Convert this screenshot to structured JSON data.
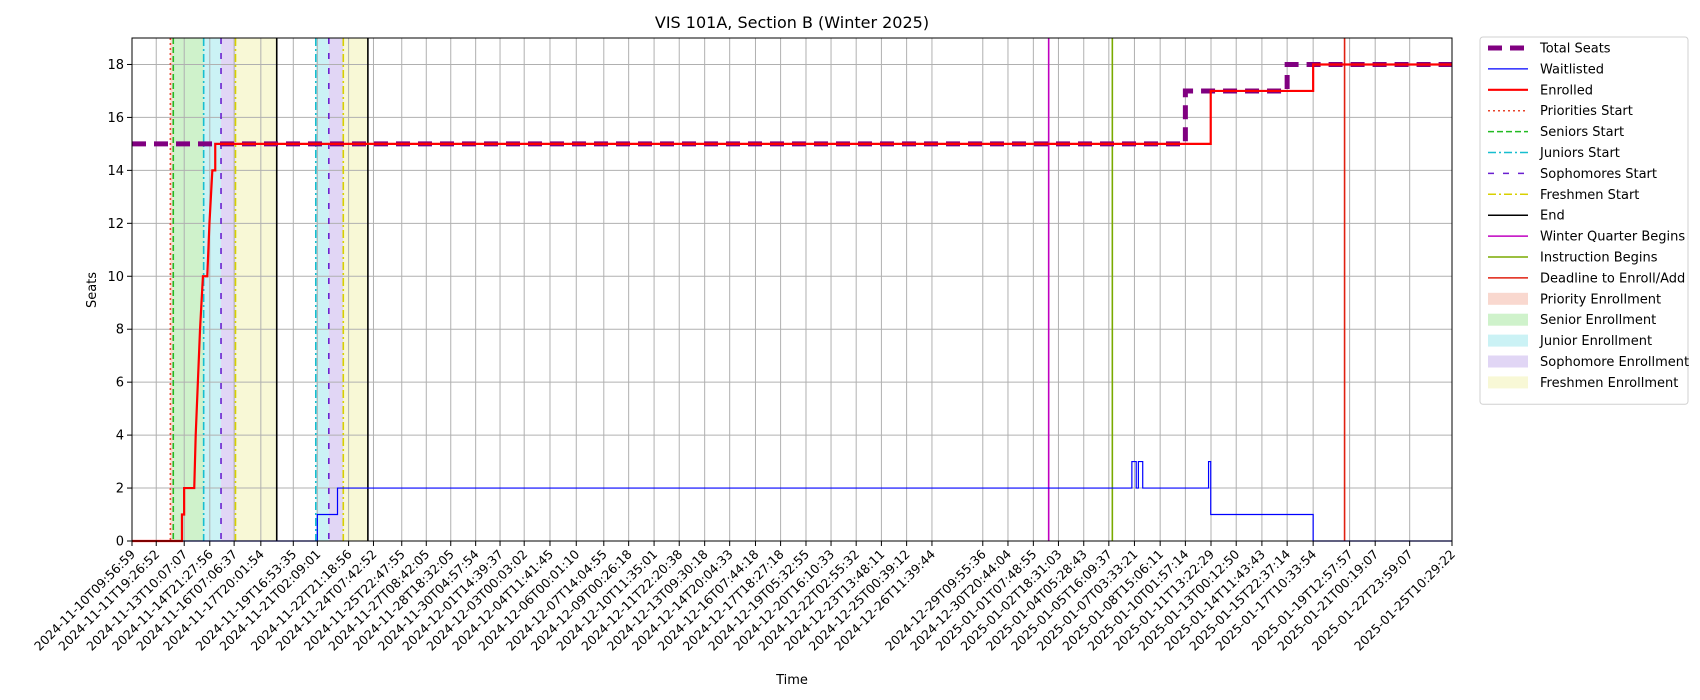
{
  "chart_data": {
    "type": "line",
    "title": "VIS 101A, Section B (Winter 2025)",
    "xlabel": "Time",
    "ylabel": "Seats",
    "ylim": [
      0,
      19
    ],
    "yticks": [
      0,
      2,
      4,
      6,
      8,
      10,
      12,
      14,
      16,
      18
    ],
    "xlim": [
      "2024-11-10T09:56:59",
      "2025-01-25T10:29:22"
    ],
    "grid": true,
    "legend_position": "outside-right",
    "xtick_labels": [
      "2024-11-10T09:56:59",
      "2024-11-11T19:26:52",
      "2024-11-13T10:07:07",
      "2024-11-14T21:27:56",
      "2024-11-16T07:06:37",
      "2024-11-17T20:01:54",
      "2024-11-19T16:53:35",
      "2024-11-21T02:09:01",
      "2024-11-22T21:18:56",
      "2024-11-24T07:42:52",
      "2024-11-25T22:47:55",
      "2024-11-27T08:42:05",
      "2024-11-28T18:32:05",
      "2024-11-30T04:57:54",
      "2024-12-01T14:39:37",
      "2024-12-03T00:03:02",
      "2024-12-04T11:41:45",
      "2024-12-06T00:01:10",
      "2024-12-07T14:04:55",
      "2024-12-09T00:26:18",
      "2024-12-10T11:35:01",
      "2024-12-11T22:20:38",
      "2024-12-13T09:30:18",
      "2024-12-14T20:04:33",
      "2024-12-16T07:44:18",
      "2024-12-17T18:27:18",
      "2024-12-19T05:32:55",
      "2024-12-20T16:10:33",
      "2024-12-22T02:55:32",
      "2024-12-23T13:48:11",
      "2024-12-25T00:39:12",
      "2024-12-26T11:39:44",
      "2024-12-29T09:55:36",
      "2024-12-30T20:44:04",
      "2025-01-01T07:48:55",
      "2025-01-02T18:31:03",
      "2025-01-04T05:28:43",
      "2025-01-05T16:09:37",
      "2025-01-07T03:33:21",
      "2025-01-08T15:06:11",
      "2025-01-10T01:57:14",
      "2025-01-11T13:22:29",
      "2025-01-13T00:12:50",
      "2025-01-14T11:43:43",
      "2025-01-15T22:37:14",
      "2025-01-17T10:33:54",
      "2025-01-19T12:57:57",
      "2025-01-21T00:19:07",
      "2025-01-22T23:59:07",
      "2025-01-25T10:29:22"
    ],
    "series": [
      {
        "name": "Total Seats",
        "color": "#800080",
        "style": "dashed-thick",
        "points": [
          [
            "2024-11-10T09:56:59",
            15
          ],
          [
            "2025-01-10T01:57:14",
            15
          ],
          [
            "2025-01-10T01:57:14",
            17
          ],
          [
            "2025-01-15T22:37:14",
            17
          ],
          [
            "2025-01-15T22:37:14",
            18
          ],
          [
            "2025-01-25T10:29:22",
            18
          ]
        ]
      },
      {
        "name": "Waitlisted",
        "color": "#0000ff",
        "style": "solid-thin",
        "points": [
          [
            "2024-11-10T09:56:59",
            0
          ],
          [
            "2024-11-21T02:09:01",
            0
          ],
          [
            "2024-11-21T02:09:01",
            1
          ],
          [
            "2024-11-22T06:00:00",
            1
          ],
          [
            "2024-11-22T06:00:00",
            2
          ],
          [
            "2025-01-07T00:00:00",
            2
          ],
          [
            "2025-01-07T00:00:00",
            3
          ],
          [
            "2025-01-07T06:00:00",
            3
          ],
          [
            "2025-01-07T06:00:00",
            2
          ],
          [
            "2025-01-07T09:00:00",
            2
          ],
          [
            "2025-01-07T09:00:00",
            3
          ],
          [
            "2025-01-07T15:00:00",
            3
          ],
          [
            "2025-01-07T15:00:00",
            2
          ],
          [
            "2025-01-11T10:00:00",
            2
          ],
          [
            "2025-01-11T10:00:00",
            3
          ],
          [
            "2025-01-11T13:00:00",
            3
          ],
          [
            "2025-01-11T13:00:00",
            1
          ],
          [
            "2025-01-17T10:33:54",
            1
          ],
          [
            "2025-01-17T10:33:54",
            0
          ],
          [
            "2025-01-25T10:29:22",
            0
          ]
        ]
      },
      {
        "name": "Enrolled",
        "color": "#ff0000",
        "style": "solid-thick",
        "points": [
          [
            "2024-11-10T09:56:59",
            0
          ],
          [
            "2024-11-13T07:00:00",
            0
          ],
          [
            "2024-11-13T07:00:00",
            1
          ],
          [
            "2024-11-13T10:00:00",
            1
          ],
          [
            "2024-11-13T10:00:00",
            2
          ],
          [
            "2024-11-14T00:00:00",
            2
          ],
          [
            "2024-11-14T02:00:00",
            4
          ],
          [
            "2024-11-14T05:00:00",
            6
          ],
          [
            "2024-11-14T08:00:00",
            8
          ],
          [
            "2024-11-14T10:00:00",
            9
          ],
          [
            "2024-11-14T12:00:00",
            10
          ],
          [
            "2024-11-14T18:00:00",
            10
          ],
          [
            "2024-11-14T21:00:00",
            12
          ],
          [
            "2024-11-15T01:00:00",
            14
          ],
          [
            "2024-11-15T05:00:00",
            14
          ],
          [
            "2024-11-15T05:00:00",
            15
          ],
          [
            "2025-01-11T13:00:00",
            15
          ],
          [
            "2025-01-11T13:00:00",
            17
          ],
          [
            "2025-01-17T10:33:54",
            17
          ],
          [
            "2025-01-17T10:33:54",
            18
          ],
          [
            "2025-01-25T10:29:22",
            18
          ]
        ]
      }
    ],
    "vlines": [
      {
        "name": "Priorities Start",
        "x": "2024-11-12T15:00:00",
        "color": "#e8462c",
        "style": "dotted"
      },
      {
        "name": "Seniors Start",
        "x": "2024-11-12T19:00:00",
        "color": "#22bb22",
        "style": "dashed"
      },
      {
        "name": "Juniors Start",
        "x": "2024-11-14T13:00:00",
        "color": "#17becf",
        "style": "dashdot"
      },
      {
        "name": "Sophomores Start",
        "x": "2024-11-15T13:00:00",
        "color": "#6a1fd0",
        "style": "loosedash"
      },
      {
        "name": "Freshmen Start",
        "x": "2024-11-16T09:00:00",
        "color": "#d8d000",
        "style": "dashdot"
      },
      {
        "name": "End",
        "x": "2024-11-18T18:00:00",
        "color": "#000000",
        "style": "solid"
      },
      {
        "name": "Juniors Start",
        "x": "2024-11-21T00:00:00",
        "color": "#17becf",
        "style": "dashdot"
      },
      {
        "name": "Sophomores Start",
        "x": "2024-11-21T18:00:00",
        "color": "#6a1fd0",
        "style": "loosedash"
      },
      {
        "name": "Freshmen Start",
        "x": "2024-11-22T14:00:00",
        "color": "#d8d000",
        "style": "dashdot"
      },
      {
        "name": "End",
        "x": "2024-11-24T00:00:00",
        "color": "#000000",
        "style": "solid"
      },
      {
        "name": "Winter Quarter Begins",
        "x": "2025-01-02T05:00:00",
        "color": "#c000c0",
        "style": "solid"
      },
      {
        "name": "Instruction Begins",
        "x": "2025-01-05T21:00:00",
        "color": "#7aaa00",
        "style": "solid"
      },
      {
        "name": "Deadline to Enroll/Add",
        "x": "2025-01-19T06:00:00",
        "color": "#e02010",
        "style": "solid"
      }
    ],
    "spans": [
      {
        "name": "Priority Enrollment",
        "from": "2024-11-12T15:00:00",
        "to": "2024-11-12T19:00:00",
        "color": "#f4b8a8"
      },
      {
        "name": "Senior Enrollment",
        "from": "2024-11-12T19:00:00",
        "to": "2024-11-14T13:00:00",
        "color": "#a8e8a0"
      },
      {
        "name": "Junior Enrollment",
        "from": "2024-11-14T13:00:00",
        "to": "2024-11-15T13:00:00",
        "color": "#a0e8ec"
      },
      {
        "name": "Sophomore Enrollment",
        "from": "2024-11-15T13:00:00",
        "to": "2024-11-16T09:00:00",
        "color": "#c8b4ec"
      },
      {
        "name": "Freshmen Enrollment",
        "from": "2024-11-16T09:00:00",
        "to": "2024-11-18T18:00:00",
        "color": "#f2f2b4"
      },
      {
        "name": "Junior Enrollment",
        "from": "2024-11-21T00:00:00",
        "to": "2024-11-21T18:00:00",
        "color": "#a0e8ec"
      },
      {
        "name": "Sophomore Enrollment",
        "from": "2024-11-21T18:00:00",
        "to": "2024-11-22T14:00:00",
        "color": "#c8b4ec"
      },
      {
        "name": "Freshmen Enrollment",
        "from": "2024-11-22T14:00:00",
        "to": "2024-11-24T00:00:00",
        "color": "#f2f2b4"
      }
    ],
    "legend": [
      {
        "label": "Total Seats",
        "kind": "line",
        "color": "#800080",
        "style": "dashed-thick"
      },
      {
        "label": "Waitlisted",
        "kind": "line",
        "color": "#0000ff",
        "style": "solid-thin"
      },
      {
        "label": "Enrolled",
        "kind": "line",
        "color": "#ff0000",
        "style": "solid-thick"
      },
      {
        "label": "Priorities Start",
        "kind": "line",
        "color": "#e8462c",
        "style": "dotted"
      },
      {
        "label": "Seniors Start",
        "kind": "line",
        "color": "#22bb22",
        "style": "dashed"
      },
      {
        "label": "Juniors Start",
        "kind": "line",
        "color": "#17becf",
        "style": "dashdot"
      },
      {
        "label": "Sophomores Start",
        "kind": "line",
        "color": "#6a1fd0",
        "style": "loosedash"
      },
      {
        "label": "Freshmen Start",
        "kind": "line",
        "color": "#d8d000",
        "style": "dashdot"
      },
      {
        "label": "End",
        "kind": "line",
        "color": "#000000",
        "style": "solid"
      },
      {
        "label": "Winter Quarter Begins",
        "kind": "line",
        "color": "#c000c0",
        "style": "solid"
      },
      {
        "label": "Instruction Begins",
        "kind": "line",
        "color": "#7aaa00",
        "style": "solid"
      },
      {
        "label": "Deadline to Enroll/Add",
        "kind": "line",
        "color": "#e02010",
        "style": "solid"
      },
      {
        "label": "Priority Enrollment",
        "kind": "patch",
        "color": "#f4b8a8"
      },
      {
        "label": "Senior Enrollment",
        "kind": "patch",
        "color": "#a8e8a0"
      },
      {
        "label": "Junior Enrollment",
        "kind": "patch",
        "color": "#a0e8ec"
      },
      {
        "label": "Sophomore Enrollment",
        "kind": "patch",
        "color": "#c8b4ec"
      },
      {
        "label": "Freshmen Enrollment",
        "kind": "patch",
        "color": "#f2f2b4"
      }
    ]
  }
}
